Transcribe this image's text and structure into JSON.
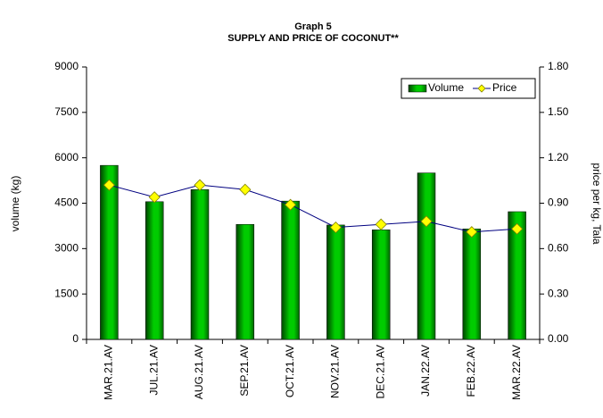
{
  "chart_data": {
    "type": "bar_line",
    "title": "Graph 5",
    "subtitle": "SUPPLY AND PRICE OF COCONUT**",
    "y_label": "volume (kg)",
    "y2_label": "price per kg, Tala",
    "categories": [
      "MAR.21.AV",
      "JUL.21.AV",
      "AUG.21.AV",
      "SEP.21.AV",
      "OCT.21.AV",
      "NOV.21.AV",
      "DEC.21.AV",
      "JAN.22.AV",
      "FEB.22.AV",
      "MAR.22.AV"
    ],
    "series": [
      {
        "name": "Volume",
        "color": "#00cc00",
        "type": "bar",
        "values": [
          5750,
          4550,
          4950,
          3800,
          4570,
          3780,
          3620,
          5500,
          3650,
          4220
        ]
      },
      {
        "name": "Price",
        "color": "#000080",
        "marker_color": "#ffff00",
        "type": "line",
        "axis": "y2",
        "values": [
          1.02,
          0.94,
          1.02,
          0.99,
          0.89,
          0.74,
          0.76,
          0.78,
          0.71,
          0.73
        ]
      }
    ],
    "ylim": [
      0,
      9000
    ],
    "yticks": [
      0,
      1500,
      3000,
      4500,
      6000,
      7500,
      9000
    ],
    "y2lim": [
      0,
      1.8
    ],
    "y2ticks": [
      {
        "value": 0,
        "label": "0.00"
      },
      {
        "value": 0.3,
        "label": "0.30"
      },
      {
        "value": 0.6,
        "label": "0.60"
      },
      {
        "value": 0.9,
        "label": "0.90"
      },
      {
        "value": 1.2,
        "label": "1.20"
      },
      {
        "value": 1.5,
        "label": "1.50"
      },
      {
        "value": 1.8,
        "label": "1.80"
      }
    ],
    "legend": "top-right"
  }
}
